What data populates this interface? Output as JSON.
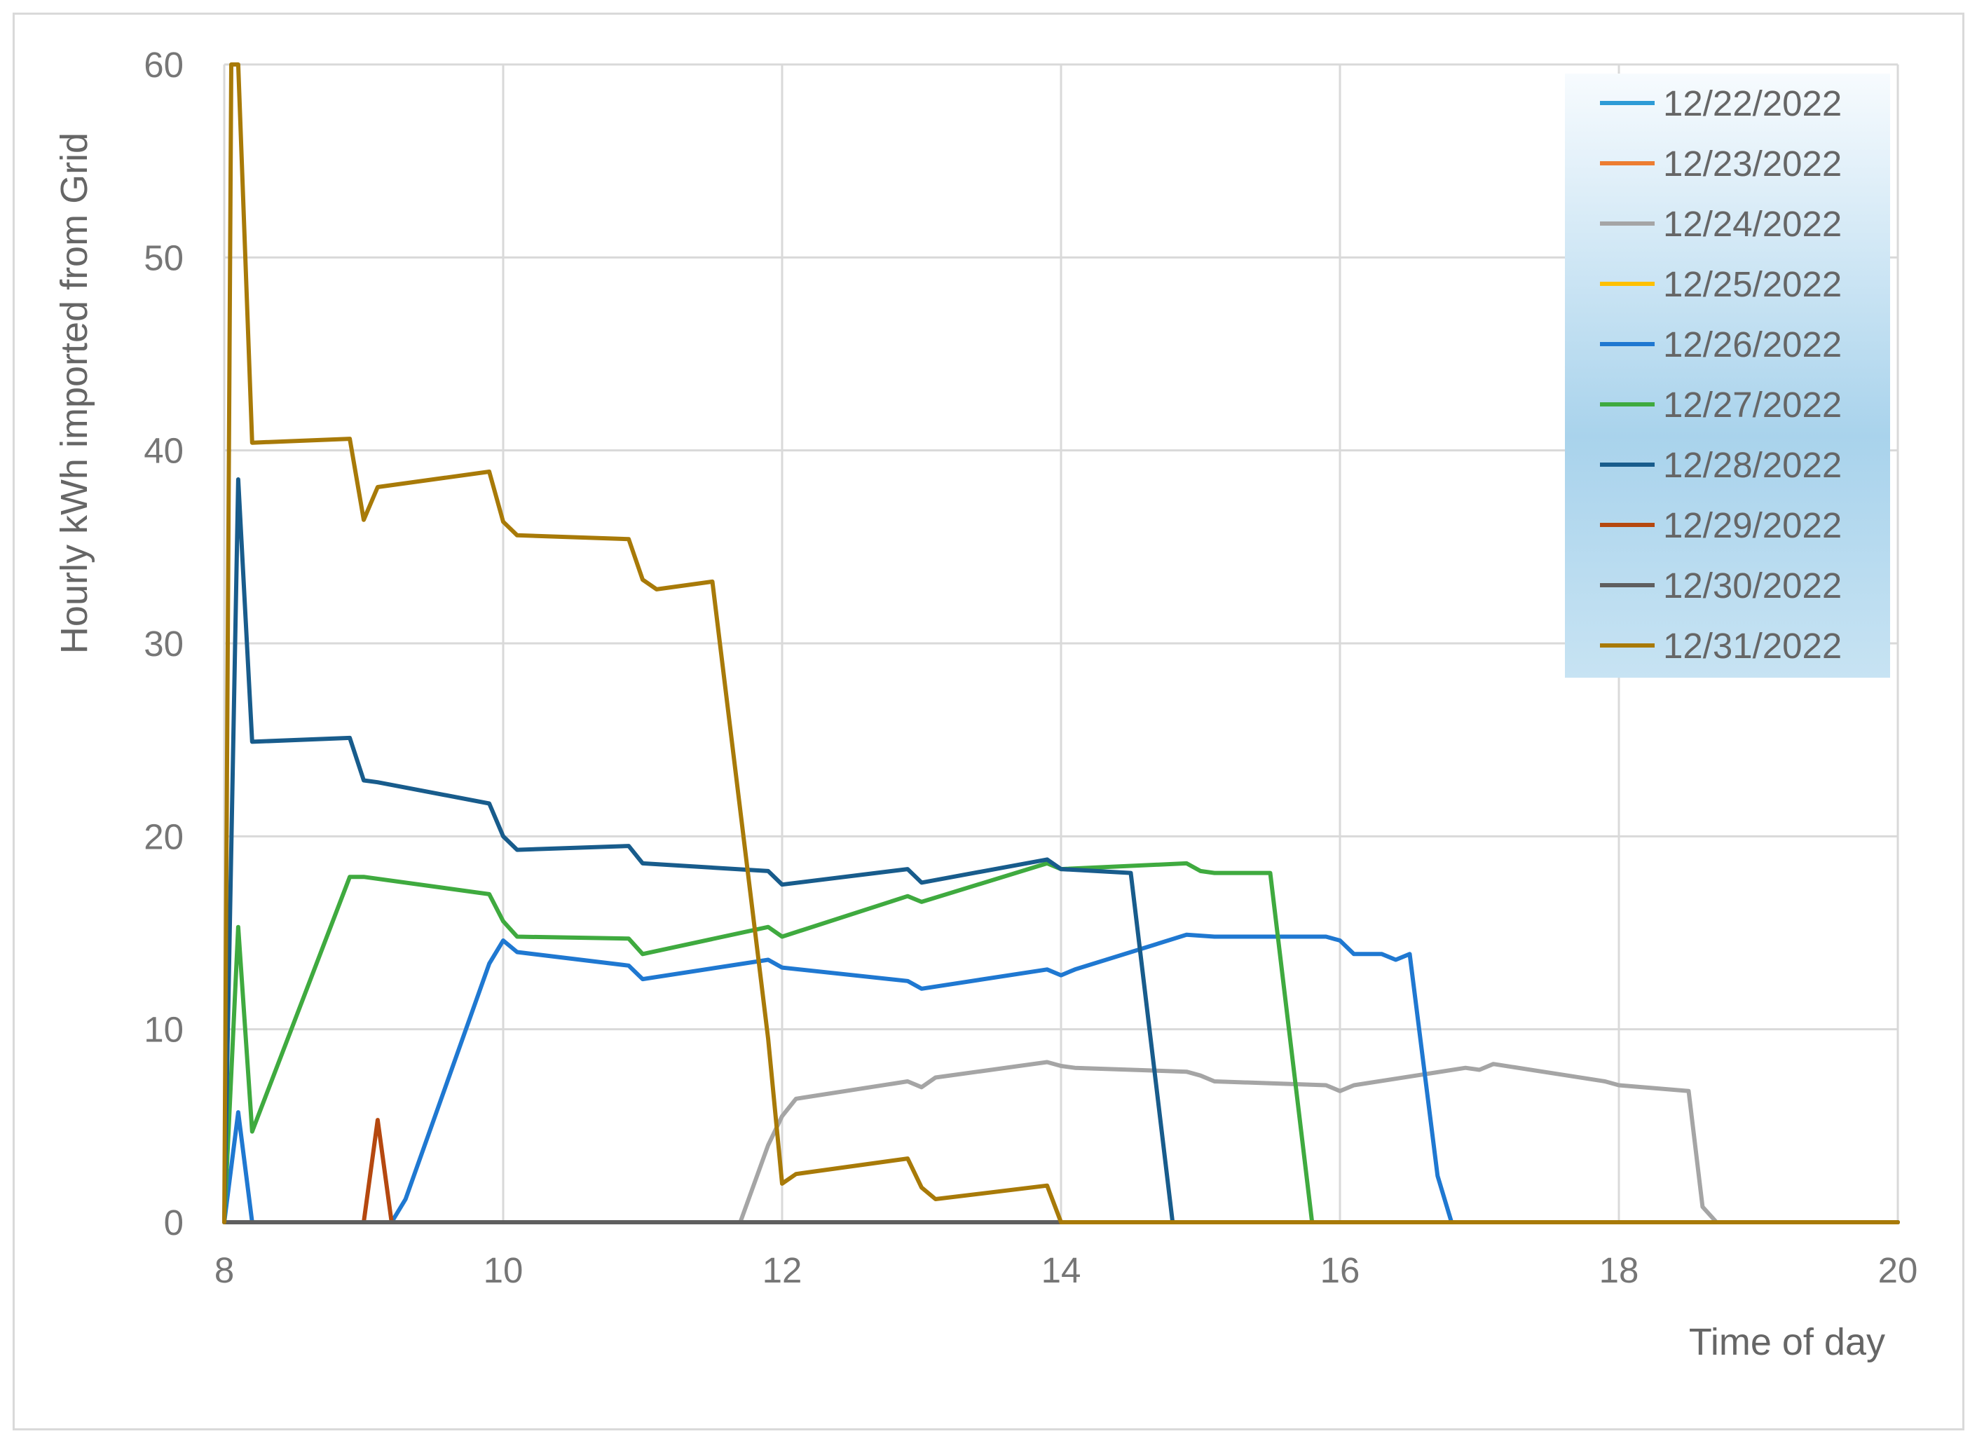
{
  "chart_data": {
    "type": "line",
    "title": "",
    "xlabel": "Time of day",
    "ylabel": "Hourly kWh imported from Grid",
    "xlim": [
      8,
      20
    ],
    "ylim": [
      0,
      60
    ],
    "xticks": [
      "8",
      "10",
      "12",
      "14",
      "16",
      "18",
      "20"
    ],
    "yticks": [
      "0",
      "10",
      "20",
      "30",
      "40",
      "50",
      "60"
    ],
    "grid": true,
    "legend_position": "top-right",
    "series": [
      {
        "name": "12/22/2022",
        "color": "#2E9BD6",
        "points": [
          [
            8,
            0
          ],
          [
            20,
            0
          ]
        ]
      },
      {
        "name": "12/23/2022",
        "color": "#ED7D31",
        "points": [
          [
            8,
            0
          ],
          [
            20,
            0
          ]
        ]
      },
      {
        "name": "12/24/2022",
        "color": "#A5A5A5",
        "points": [
          [
            8,
            0
          ],
          [
            11.7,
            0
          ],
          [
            11.9,
            4
          ],
          [
            12,
            5.5
          ],
          [
            12.1,
            6.4
          ],
          [
            12.9,
            7.3
          ],
          [
            13,
            7
          ],
          [
            13.1,
            7.5
          ],
          [
            13.9,
            8.3
          ],
          [
            14,
            8.1
          ],
          [
            14.1,
            8
          ],
          [
            14.9,
            7.8
          ],
          [
            15,
            7.6
          ],
          [
            15.1,
            7.3
          ],
          [
            15.9,
            7.1
          ],
          [
            16,
            6.8
          ],
          [
            16.1,
            7.1
          ],
          [
            16.9,
            8
          ],
          [
            17,
            7.9
          ],
          [
            17.1,
            8.2
          ],
          [
            17.9,
            7.3
          ],
          [
            18,
            7.1
          ],
          [
            18.5,
            6.8
          ],
          [
            18.6,
            0.8
          ],
          [
            18.7,
            0
          ],
          [
            20,
            0
          ]
        ]
      },
      {
        "name": "12/25/2022",
        "color": "#FFC000",
        "points": [
          [
            8,
            0
          ],
          [
            20,
            0
          ]
        ]
      },
      {
        "name": "12/26/2022",
        "color": "#1F78D1",
        "points": [
          [
            8,
            0
          ],
          [
            8.1,
            5.7
          ],
          [
            8.2,
            0
          ],
          [
            9.2,
            0
          ],
          [
            9.3,
            1.2
          ],
          [
            9.9,
            13.4
          ],
          [
            10,
            14.6
          ],
          [
            10.1,
            14
          ],
          [
            10.9,
            13.3
          ],
          [
            11,
            12.6
          ],
          [
            11.9,
            13.6
          ],
          [
            12,
            13.2
          ],
          [
            12.9,
            12.5
          ],
          [
            13,
            12.1
          ],
          [
            13.9,
            13.1
          ],
          [
            14,
            12.8
          ],
          [
            14.1,
            13.1
          ],
          [
            14.9,
            14.9
          ],
          [
            15.1,
            14.8
          ],
          [
            15.9,
            14.8
          ],
          [
            16,
            14.6
          ],
          [
            16.1,
            13.9
          ],
          [
            16.3,
            13.9
          ],
          [
            16.4,
            13.6
          ],
          [
            16.5,
            13.9
          ],
          [
            16.7,
            2.4
          ],
          [
            16.8,
            0
          ],
          [
            20,
            0
          ]
        ]
      },
      {
        "name": "12/27/2022",
        "color": "#3FAA3F",
        "points": [
          [
            8,
            0
          ],
          [
            8.1,
            15.3
          ],
          [
            8.2,
            4.7
          ],
          [
            8.9,
            17.9
          ],
          [
            9,
            17.9
          ],
          [
            9.9,
            17
          ],
          [
            10,
            15.6
          ],
          [
            10.1,
            14.8
          ],
          [
            10.9,
            14.7
          ],
          [
            11,
            13.9
          ],
          [
            11.9,
            15.3
          ],
          [
            12,
            14.8
          ],
          [
            12.9,
            16.9
          ],
          [
            13,
            16.6
          ],
          [
            13.9,
            18.6
          ],
          [
            14,
            18.3
          ],
          [
            14.9,
            18.6
          ],
          [
            15,
            18.2
          ],
          [
            15.1,
            18.1
          ],
          [
            15.5,
            18.1
          ],
          [
            15.8,
            0
          ],
          [
            20,
            0
          ]
        ]
      },
      {
        "name": "12/28/2022",
        "color": "#185C8C",
        "points": [
          [
            8,
            0
          ],
          [
            8.1,
            38.5
          ],
          [
            8.2,
            24.9
          ],
          [
            8.9,
            25.1
          ],
          [
            9,
            22.9
          ],
          [
            9.1,
            22.8
          ],
          [
            9.9,
            21.7
          ],
          [
            10,
            20
          ],
          [
            10.1,
            19.3
          ],
          [
            10.9,
            19.5
          ],
          [
            11,
            18.6
          ],
          [
            11.9,
            18.2
          ],
          [
            12,
            17.5
          ],
          [
            12.9,
            18.3
          ],
          [
            13,
            17.6
          ],
          [
            13.9,
            18.8
          ],
          [
            14,
            18.3
          ],
          [
            14.5,
            18.1
          ],
          [
            14.8,
            0
          ],
          [
            20,
            0
          ]
        ]
      },
      {
        "name": "12/29/2022",
        "color": "#B5480F",
        "points": [
          [
            8,
            0
          ],
          [
            9,
            0
          ],
          [
            9.1,
            5.3
          ],
          [
            9.2,
            0
          ],
          [
            20,
            0
          ]
        ]
      },
      {
        "name": "12/30/2022",
        "color": "#5F5F5F",
        "points": [
          [
            8,
            0
          ],
          [
            20,
            0
          ]
        ]
      },
      {
        "name": "12/31/2022",
        "color": "#A87A08",
        "points": [
          [
            8,
            0
          ],
          [
            8.05,
            60
          ],
          [
            8.1,
            60
          ],
          [
            8.2,
            40.4
          ],
          [
            8.9,
            40.6
          ],
          [
            9,
            36.4
          ],
          [
            9.1,
            38.1
          ],
          [
            9.9,
            38.9
          ],
          [
            10,
            36.3
          ],
          [
            10.1,
            35.6
          ],
          [
            10.9,
            35.4
          ],
          [
            11,
            33.3
          ],
          [
            11.1,
            32.8
          ],
          [
            11.5,
            33.2
          ],
          [
            11.9,
            9.5
          ],
          [
            12,
            2
          ],
          [
            12.1,
            2.5
          ],
          [
            12.9,
            3.3
          ],
          [
            13,
            1.8
          ],
          [
            13.1,
            1.2
          ],
          [
            13.9,
            1.9
          ],
          [
            14,
            0
          ],
          [
            20,
            0
          ]
        ]
      }
    ]
  }
}
